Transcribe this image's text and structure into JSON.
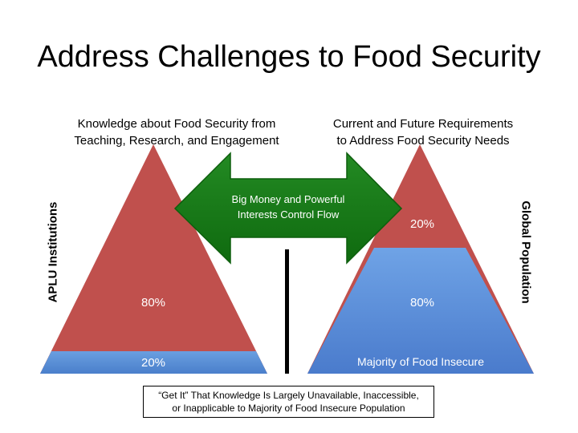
{
  "title": "Address Challenges to Food Security",
  "left_pyramid": {
    "caption_line1": "Knowledge about Food Security from",
    "caption_line2": "Teaching, Research, and Engagement",
    "side_label": "APLU Institutions",
    "top_label": "80%",
    "bottom_label": "20%",
    "top_fraction": 0.8,
    "bottom_fraction": 0.2
  },
  "right_pyramid": {
    "caption_line1": "Current and Future Requirements",
    "caption_line2": "to Address Food Security Needs",
    "side_label": "Global Population",
    "top_label": "20%",
    "bottom_label": "80%",
    "bottom_sublabel": "Majority of Food Insecure",
    "top_fraction": 0.2,
    "bottom_fraction": 0.8
  },
  "arrow": {
    "line1": "Big Money and Powerful",
    "line2": "Interests Control Flow"
  },
  "note": {
    "line1": "“Get It” That Knowledge Is Largely Unavailable, Inaccessible,",
    "line2": "or Inapplicable to Majority of Food Insecure Population"
  },
  "colors": {
    "red": "#c0504d",
    "blue": "#4f81bd",
    "blue_light": "#6a9fe0",
    "green": "#1d7c1d",
    "green_dark": "#0d5e0d",
    "divider": "#000000"
  }
}
